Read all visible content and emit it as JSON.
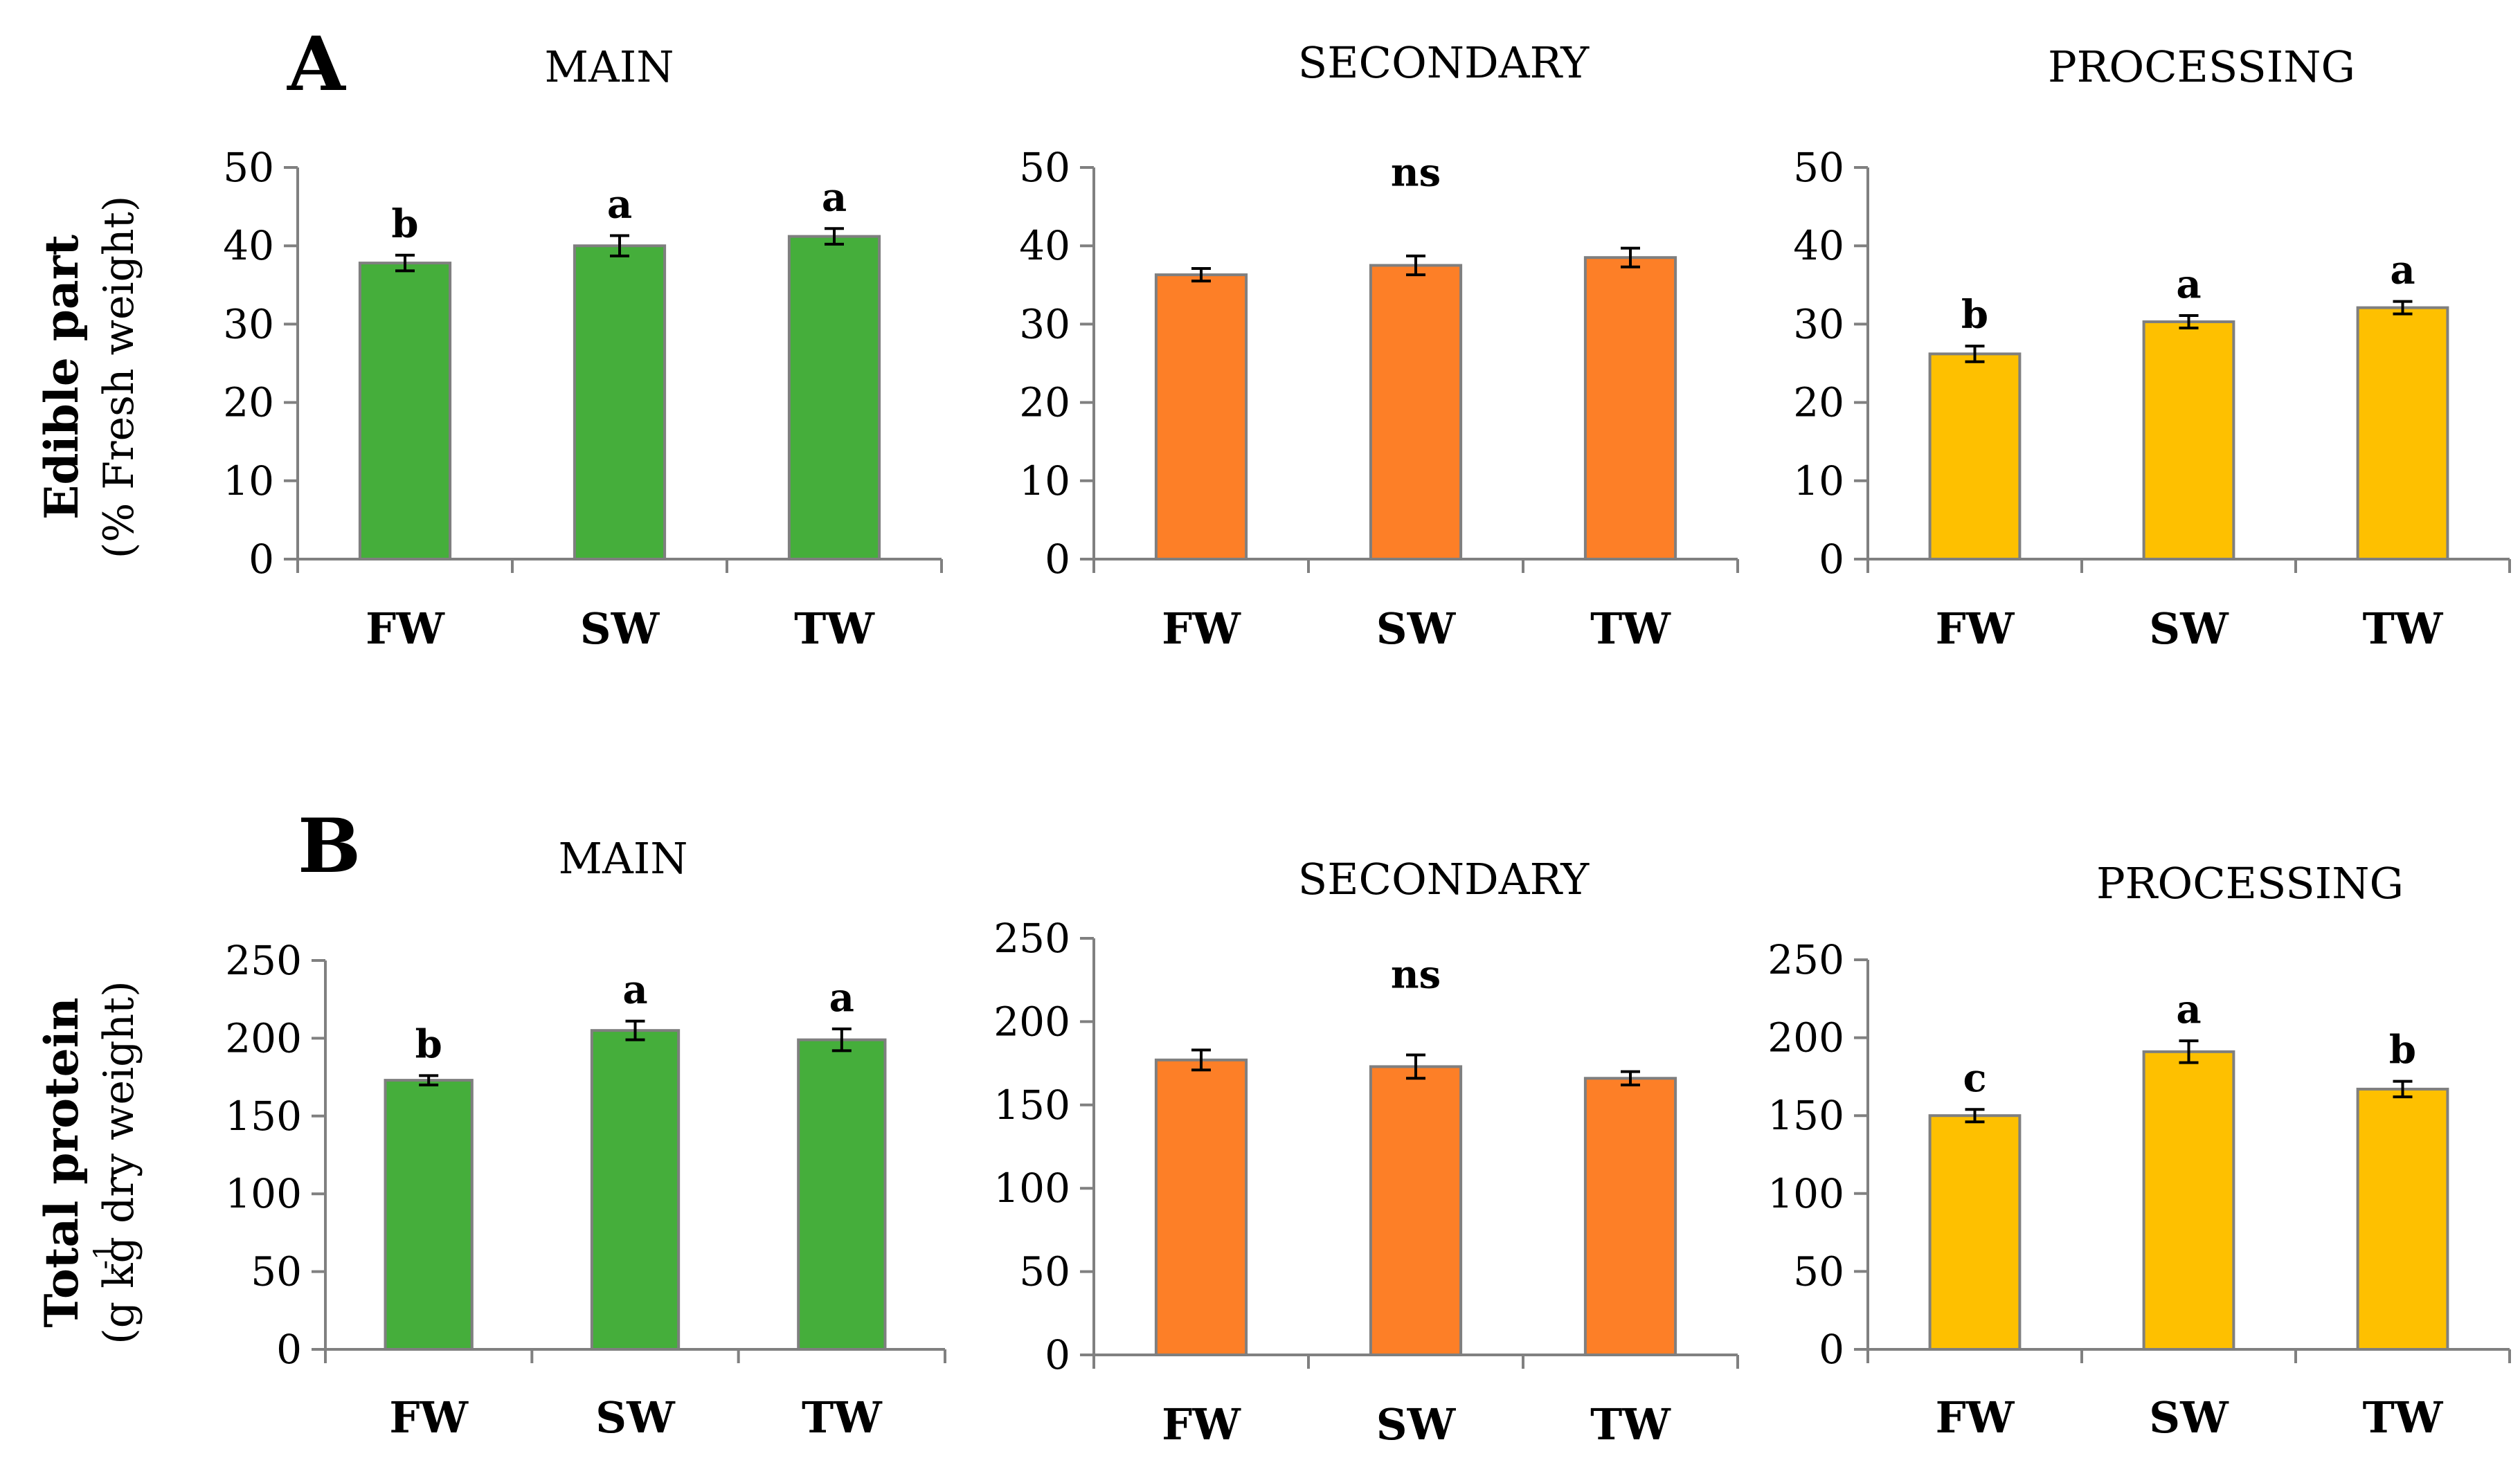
{
  "figure": {
    "rows": [
      {
        "letter": "A",
        "ylabel": "Edible part",
        "ylabel_sub": "(% Fresh weight)",
        "ylabel_sub_sup": ""
      },
      {
        "letter": "B",
        "ylabel": "Total protein",
        "ylabel_sub": "(g kg  dry weight)",
        "ylabel_sub_sup": "-1"
      }
    ]
  },
  "chart_data": [
    {
      "type": "bar",
      "title": "MAIN",
      "ylabel": "Edible part (% Fresh weight)",
      "categories": [
        "FW",
        "SW",
        "TW"
      ],
      "values": [
        37.8,
        40.0,
        41.2
      ],
      "errors": [
        1.0,
        1.3,
        1.0
      ],
      "significance": [
        "b",
        "a",
        "a"
      ],
      "ylim": [
        0,
        50
      ],
      "yticks": [
        0,
        10,
        20,
        30,
        40,
        50
      ],
      "color": "#45ae3b"
    },
    {
      "type": "bar",
      "title": "SECONDARY",
      "ylabel": "Edible part (% Fresh weight)",
      "categories": [
        "FW",
        "SW",
        "TW"
      ],
      "values": [
        36.3,
        37.5,
        38.5
      ],
      "errors": [
        0.8,
        1.2,
        1.2
      ],
      "significance_all": "ns",
      "ylim": [
        0,
        50
      ],
      "yticks": [
        0,
        10,
        20,
        30,
        40,
        50
      ],
      "color": "#fd7f27"
    },
    {
      "type": "bar",
      "title": "PROCESSING",
      "ylabel": "Edible part (% Fresh weight)",
      "categories": [
        "FW",
        "SW",
        "TW"
      ],
      "values": [
        26.2,
        30.3,
        32.1
      ],
      "errors": [
        1.0,
        0.8,
        0.8
      ],
      "significance": [
        "b",
        "a",
        "a"
      ],
      "ylim": [
        0,
        50
      ],
      "yticks": [
        0,
        10,
        20,
        30,
        40,
        50
      ],
      "color": "#fec000"
    },
    {
      "type": "bar",
      "title": "MAIN",
      "ylabel": "Total protein (g kg-1 dry weight)",
      "categories": [
        "FW",
        "SW",
        "TW"
      ],
      "values": [
        173,
        205,
        199
      ],
      "errors": [
        3,
        6,
        7
      ],
      "significance": [
        "b",
        "a",
        "a"
      ],
      "ylim": [
        0,
        250
      ],
      "yticks": [
        0,
        50,
        100,
        150,
        200,
        250
      ],
      "color": "#45ae3b"
    },
    {
      "type": "bar",
      "title": "SECONDARY",
      "ylabel": "Total protein (g kg-1 dry weight)",
      "categories": [
        "FW",
        "SW",
        "TW"
      ],
      "values": [
        177,
        173,
        166
      ],
      "errors": [
        6,
        7,
        4
      ],
      "significance_all": "ns",
      "ylim": [
        0,
        250
      ],
      "yticks": [
        0,
        50,
        100,
        150,
        200,
        250
      ],
      "color": "#fd7f27"
    },
    {
      "type": "bar",
      "title": "PROCESSING",
      "ylabel": "Total protein (g kg-1 dry weight)",
      "categories": [
        "FW",
        "SW",
        "TW"
      ],
      "values": [
        150,
        191,
        167
      ],
      "errors": [
        4,
        7,
        5
      ],
      "significance": [
        "c",
        "a",
        "b"
      ],
      "ylim": [
        0,
        250
      ],
      "yticks": [
        0,
        50,
        100,
        150,
        200,
        250
      ],
      "color": "#fec000"
    }
  ]
}
